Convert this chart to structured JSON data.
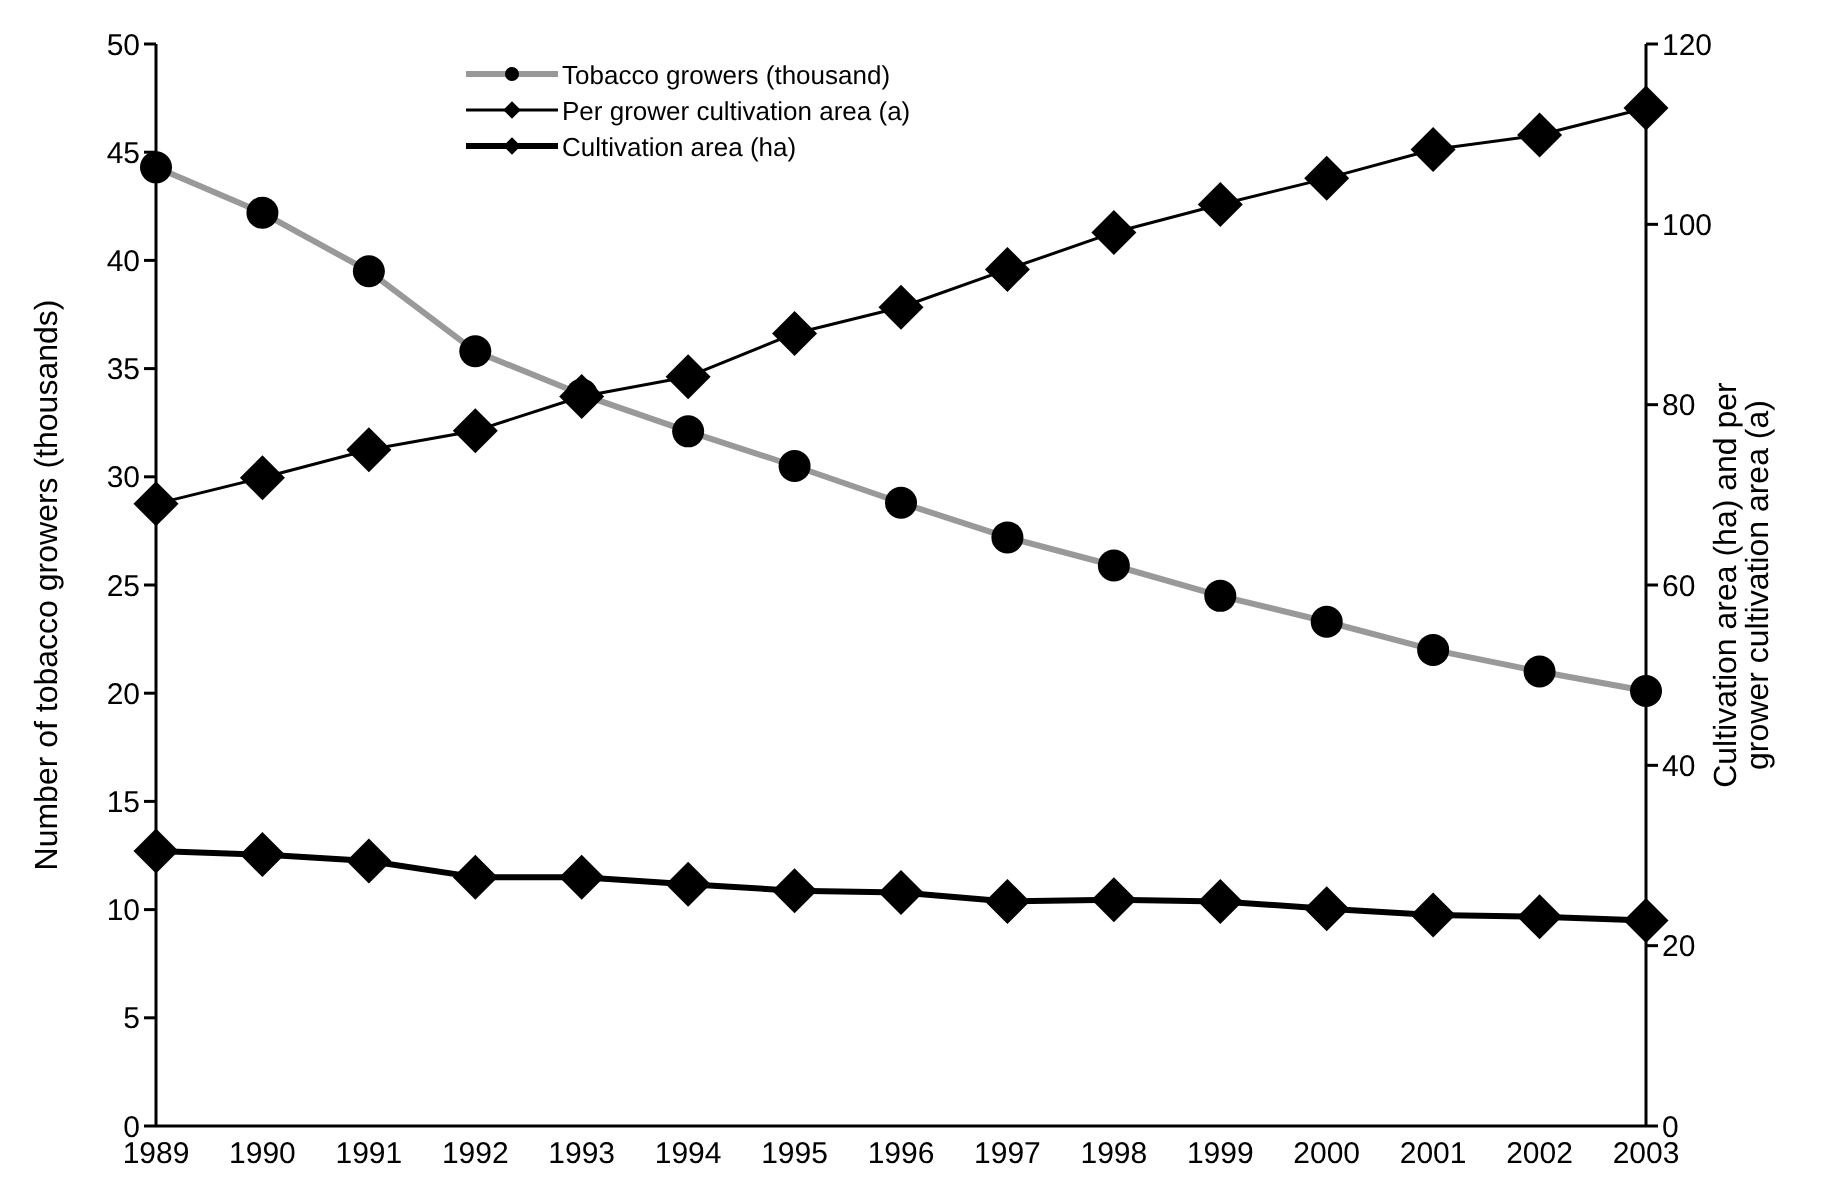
{
  "chart_data": {
    "type": "line",
    "categories": [
      "1989",
      "1990",
      "1991",
      "1992",
      "1993",
      "1994",
      "1995",
      "1996",
      "1997",
      "1998",
      "1999",
      "2000",
      "2001",
      "2002",
      "2003"
    ],
    "ylabel": "Number of tobacco growers (thousands)",
    "y2label": "Cultivation area (ha) and per grower cultivation area (a)",
    "ylim": [
      0,
      50
    ],
    "yticks": [
      0,
      5,
      10,
      15,
      20,
      25,
      30,
      35,
      40,
      45,
      50
    ],
    "y2lim": [
      0,
      120
    ],
    "y2ticks": [
      0,
      20,
      40,
      60,
      80,
      100,
      120
    ],
    "legend": "top",
    "grid": false,
    "series": [
      {
        "name": "Tobacco growers (thousand)",
        "color": "#999999",
        "colors": [
          "#000000",
          "#000000",
          "#000000",
          "#000000",
          "#000000",
          "#000000",
          "#000000",
          "#000000",
          "#000000",
          "#000000",
          "#000000",
          "#000000",
          "#000000",
          "#000000",
          "#000000"
        ],
        "marker": "circle",
        "values": [
          44.3,
          42.2,
          39.5,
          35.8,
          33.8,
          32.1,
          30.5,
          28.8,
          27.2,
          25.9,
          24.5,
          23.3,
          22.0,
          21.0,
          20.1
        ]
      },
      {
        "name": "Per grower cultivation area (a)",
        "color": "#000000",
        "marker": "diamond",
        "axis": "y2",
        "values": [
          69.0,
          71.9,
          75.0,
          77.1,
          80.9,
          83.1,
          87.9,
          90.8,
          95.0,
          99.1,
          102.2,
          105.1,
          108.3,
          109.9,
          112.9
        ]
      },
      {
        "name": "Cultivation area (ha)",
        "color": "#000000",
        "marker": "diamond",
        "axis": "y2",
        "values": [
          30.5,
          30.1,
          29.4,
          27.6,
          27.6,
          26.8,
          26.1,
          25.9,
          24.9,
          25.1,
          24.9,
          24.1,
          23.4,
          23.2,
          22.8
        ]
      }
    ]
  }
}
